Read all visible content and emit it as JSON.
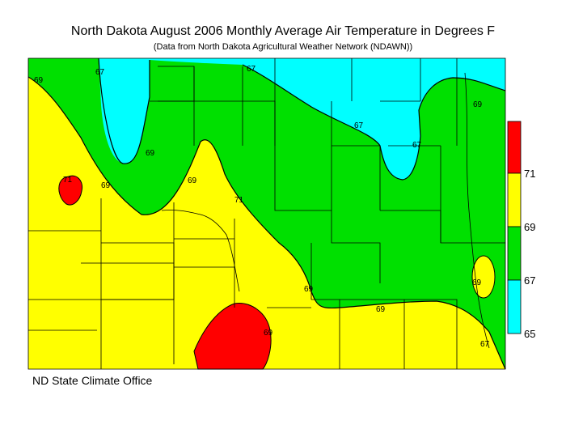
{
  "title": "North Dakota August 2006 Monthly Average Air Temperature in Degrees F",
  "subtitle": "(Data from North Dakota Agricultural Weather Network (NDAWN))",
  "credit": "ND State Climate Office",
  "colors": {
    "below_67": "#00ffff",
    "67_69": "#00e000",
    "69_71": "#ffff00",
    "above_71": "#ff0000",
    "lines": "#000000"
  },
  "legend": {
    "bins": [
      {
        "range": "65-67",
        "color": "#00ffff"
      },
      {
        "range": "67-69",
        "color": "#00e000"
      },
      {
        "range": "69-71",
        "color": "#ffff00"
      },
      {
        "range": "71+",
        "color": "#ff0000"
      }
    ],
    "ticks": [
      "71",
      "69",
      "67",
      "65"
    ]
  },
  "contour_labels": [
    "69",
    "67",
    "67",
    "67",
    "67",
    "69",
    "69",
    "71",
    "69",
    "69",
    "71",
    "69",
    "69",
    "69",
    "67",
    "69"
  ]
}
